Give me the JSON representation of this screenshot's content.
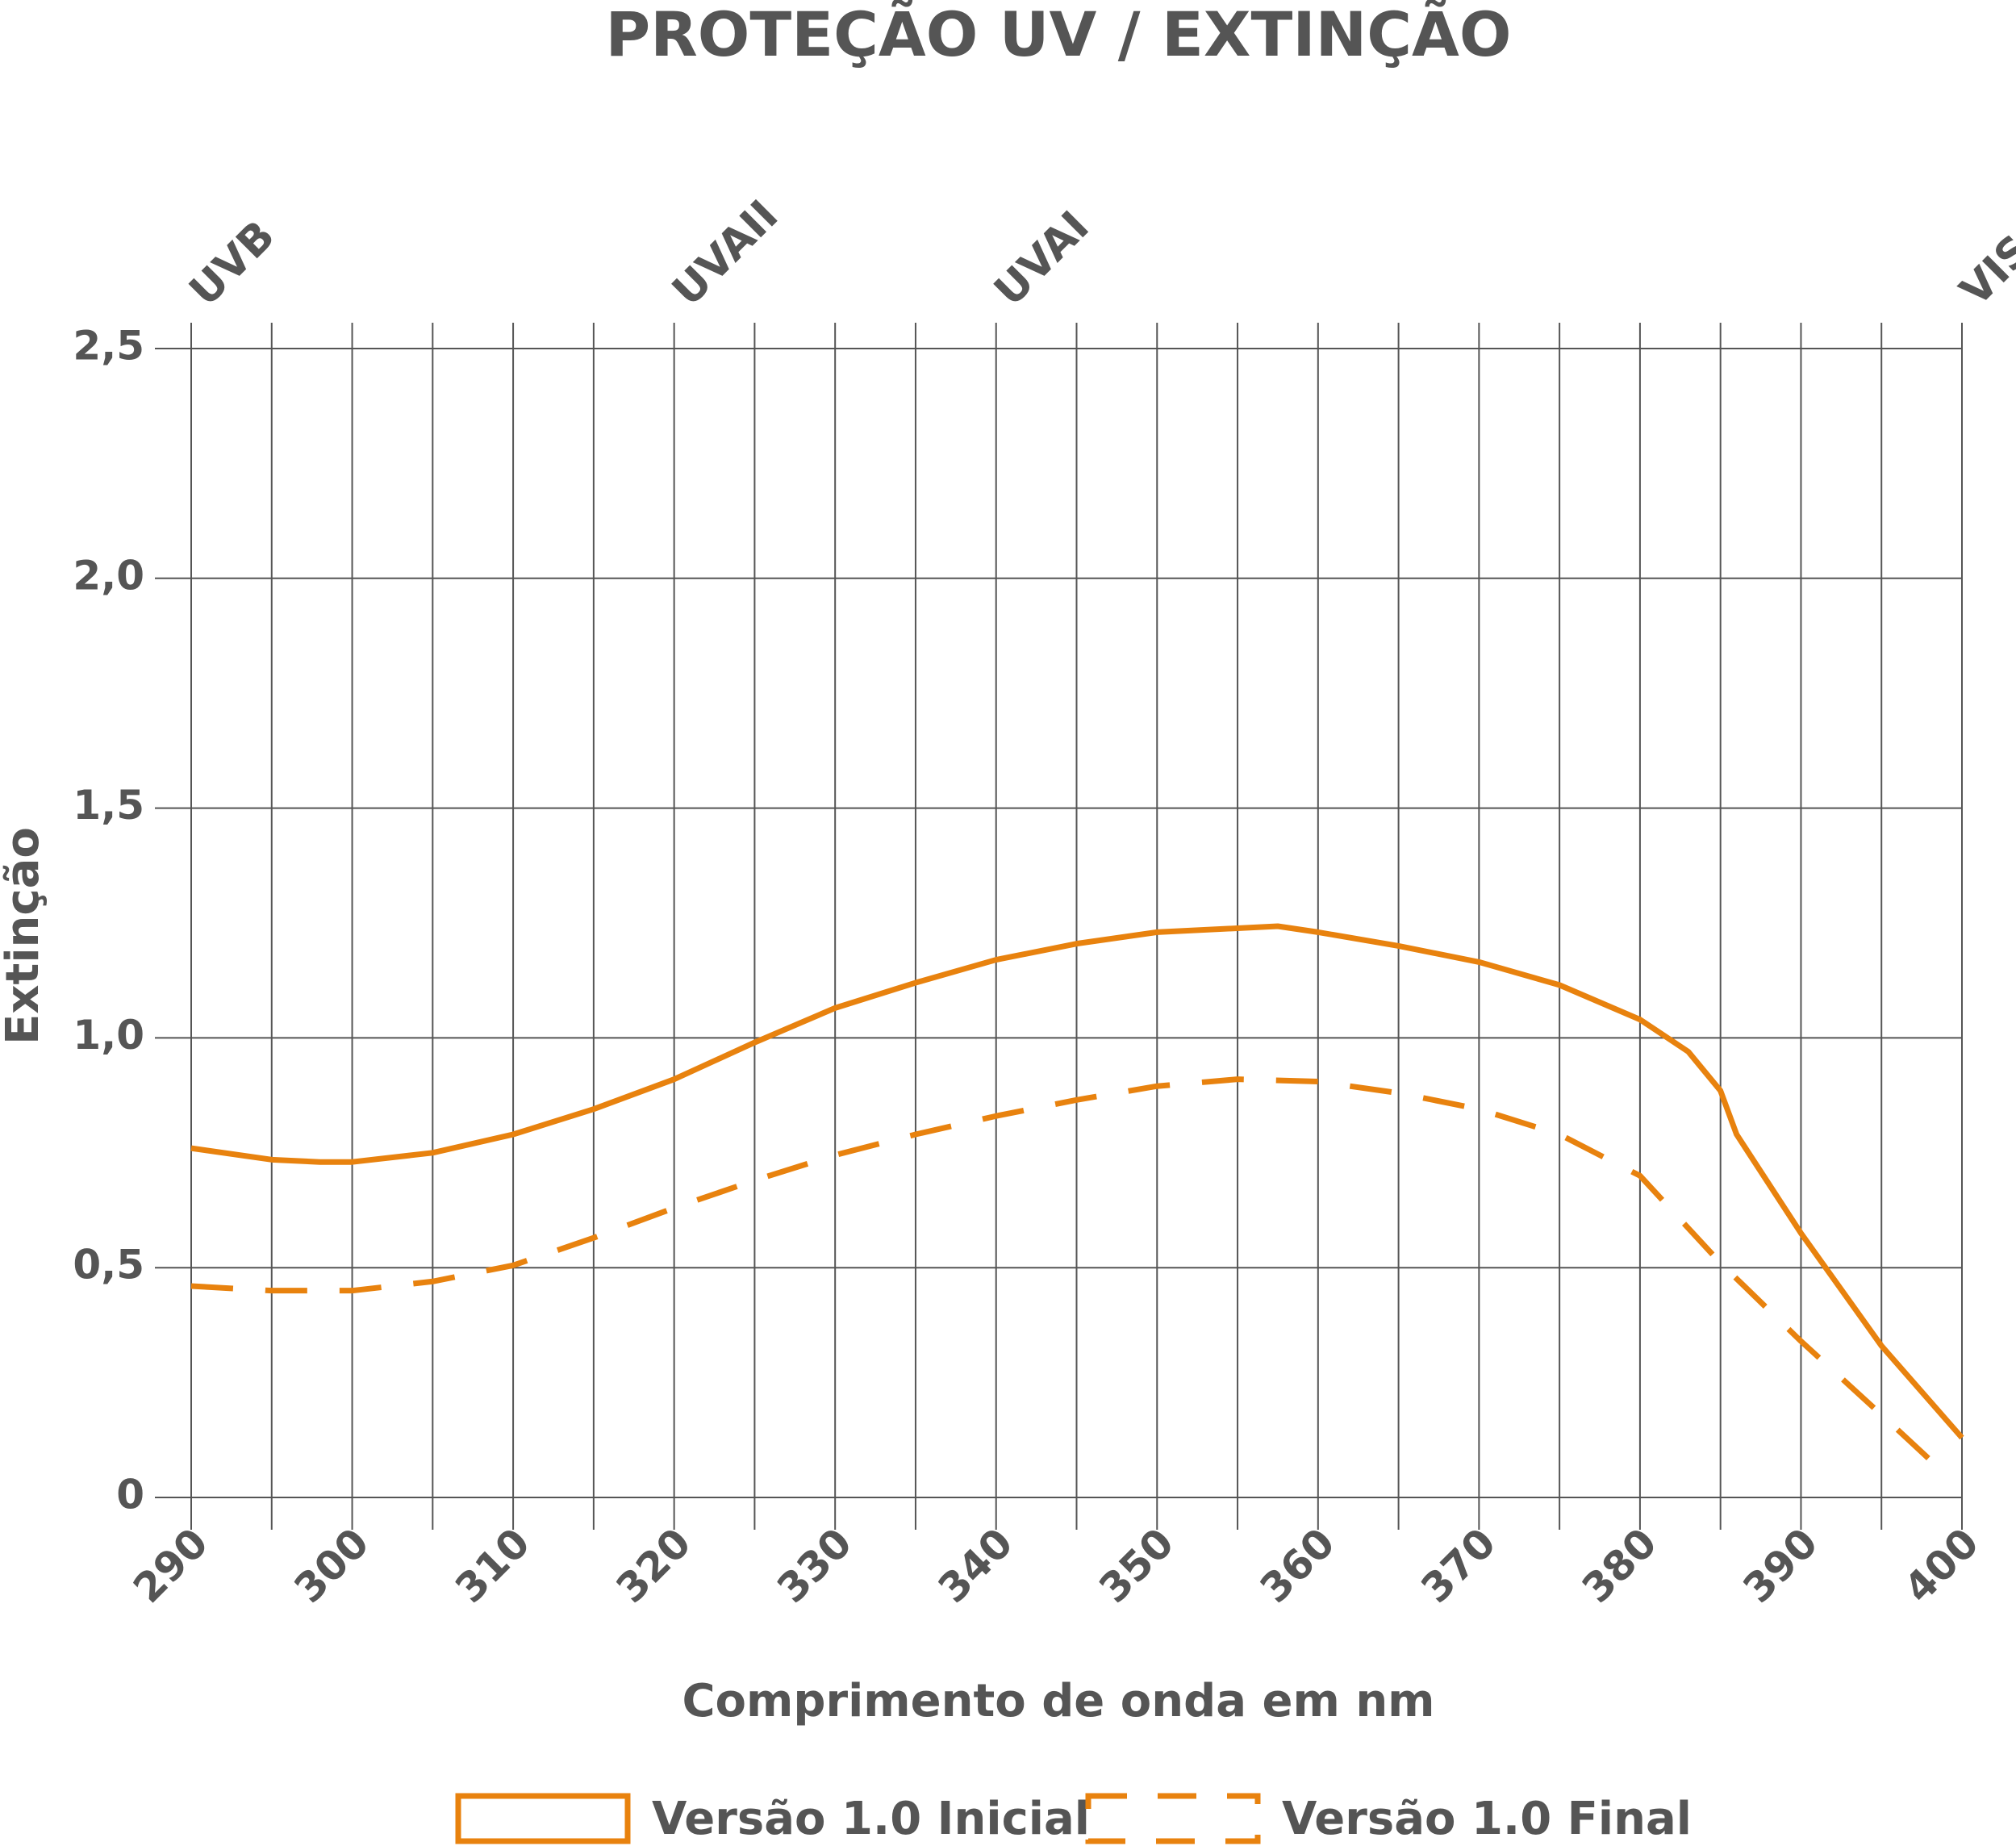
{
  "chart_data": {
    "type": "line",
    "title": "PROTEÇÃO UV / EXTINÇÃO",
    "x_label": "Comprimento de onda em nm",
    "y_label": "Extinção",
    "xlim": [
      290,
      400
    ],
    "ylim": [
      0,
      2.5
    ],
    "xticks": [
      290,
      300,
      310,
      320,
      330,
      340,
      350,
      360,
      370,
      380,
      390,
      400
    ],
    "xminor": [
      295,
      305,
      315,
      325,
      335,
      345,
      355,
      365,
      375,
      385,
      395
    ],
    "yticks": [
      0,
      {
        "value": 0.5,
        "label": "0,5"
      },
      {
        "value": 1.0,
        "label": "1,0"
      },
      {
        "value": 1.5,
        "label": "1,5"
      },
      {
        "value": 2.0,
        "label": "2,0"
      },
      {
        "value": 2.5,
        "label": "2,5"
      }
    ],
    "bands": [
      {
        "label": "UVB",
        "x": 290
      },
      {
        "label": "UVAII",
        "x": 320
      },
      {
        "label": "UVAI",
        "x": 340
      },
      {
        "label": "VIS",
        "x": 400
      }
    ],
    "grid": true,
    "legend": "bottom",
    "series": [
      {
        "name": "Versão 1.0 Inicial",
        "color": "#e8820e",
        "dashed": false,
        "x": [
          290,
          295,
          298,
          300,
          305,
          310,
          315,
          320,
          325,
          330,
          335,
          340,
          345,
          350,
          357.5,
          360,
          365,
          370,
          375,
          380,
          383,
          385,
          386,
          390,
          395,
          400
        ],
        "values": [
          0.76,
          0.735,
          0.73,
          0.73,
          0.75,
          0.79,
          0.845,
          0.91,
          0.99,
          1.065,
          1.12,
          1.17,
          1.205,
          1.23,
          1.243,
          1.23,
          1.2,
          1.165,
          1.115,
          1.04,
          0.97,
          0.885,
          0.79,
          0.575,
          0.33,
          0.13
        ]
      },
      {
        "name": "Versão 1.0 Final",
        "color": "#e8820e",
        "dashed": true,
        "x": [
          290,
          295,
          300,
          305,
          310,
          315,
          320,
          325,
          330,
          335,
          340,
          345,
          350,
          355,
          360,
          365,
          370,
          375,
          380,
          385,
          390,
          395,
          398.2
        ],
        "values": [
          0.46,
          0.45,
          0.45,
          0.47,
          0.505,
          0.565,
          0.63,
          0.69,
          0.745,
          0.79,
          0.83,
          0.865,
          0.895,
          0.91,
          0.905,
          0.88,
          0.845,
          0.79,
          0.7,
          0.51,
          0.34,
          0.18,
          0.076
        ]
      }
    ]
  }
}
